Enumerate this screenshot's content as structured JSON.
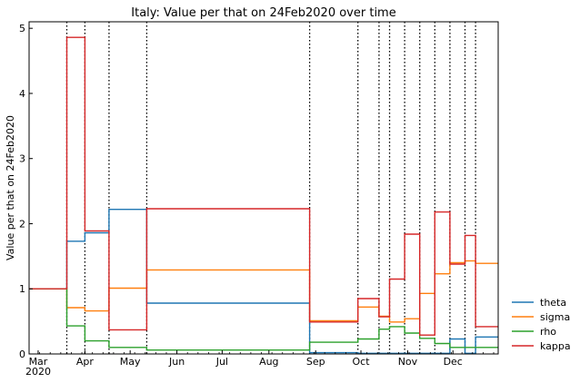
{
  "chart_data": {
    "type": "line",
    "title": "Italy: Value per that on 24Feb2020 over time",
    "xlabel": "",
    "ylabel": "Value per that on 24Feb2020",
    "ylim": [
      0,
      5.1
    ],
    "yticks": [
      0,
      1,
      2,
      3,
      4,
      5
    ],
    "xlim": [
      "2020-02-24",
      "2020-12-31"
    ],
    "xticks": [
      {
        "date": "2020-03-01",
        "label": "Mar",
        "sublabel": "2020"
      },
      {
        "date": "2020-04-01",
        "label": "Apr",
        "sublabel": ""
      },
      {
        "date": "2020-05-01",
        "label": "May",
        "sublabel": ""
      },
      {
        "date": "2020-06-01",
        "label": "Jun",
        "sublabel": ""
      },
      {
        "date": "2020-07-01",
        "label": "Jul",
        "sublabel": ""
      },
      {
        "date": "2020-08-01",
        "label": "Aug",
        "sublabel": ""
      },
      {
        "date": "2020-09-01",
        "label": "Sep",
        "sublabel": ""
      },
      {
        "date": "2020-10-01",
        "label": "Oct",
        "sublabel": ""
      },
      {
        "date": "2020-11-01",
        "label": "Nov",
        "sublabel": ""
      },
      {
        "date": "2020-12-01",
        "label": "Dec",
        "sublabel": ""
      }
    ],
    "change_points": [
      "2020-03-20",
      "2020-04-01",
      "2020-04-17",
      "2020-05-12",
      "2020-08-28",
      "2020-09-29",
      "2020-10-13",
      "2020-10-20",
      "2020-10-30",
      "2020-11-09",
      "2020-11-19",
      "2020-11-29",
      "2020-12-09",
      "2020-12-16"
    ],
    "legend_position": "right",
    "series": [
      {
        "name": "theta",
        "color": "#1f77b4",
        "values": [
          1.0,
          1.73,
          1.86,
          2.22,
          0.78,
          0.02,
          0.01,
          0.01,
          0.01,
          0.01,
          0.01,
          0.01,
          0.23,
          0.01,
          0.26
        ]
      },
      {
        "name": "sigma",
        "color": "#ff7f0e",
        "values": [
          1.0,
          0.71,
          0.66,
          1.01,
          1.29,
          0.51,
          0.72,
          0.58,
          0.49,
          0.54,
          0.93,
          1.23,
          1.4,
          1.43,
          1.39
        ]
      },
      {
        "name": "rho",
        "color": "#2ca02c",
        "values": [
          1.0,
          0.43,
          0.2,
          0.1,
          0.06,
          0.18,
          0.23,
          0.38,
          0.42,
          0.32,
          0.24,
          0.16,
          0.1,
          0.1,
          0.1
        ]
      },
      {
        "name": "kappa",
        "color": "#d62728",
        "values": [
          1.0,
          4.86,
          1.89,
          0.37,
          2.23,
          0.49,
          0.85,
          0.57,
          1.15,
          1.84,
          0.29,
          2.18,
          1.38,
          1.82,
          0.42
        ]
      }
    ]
  }
}
